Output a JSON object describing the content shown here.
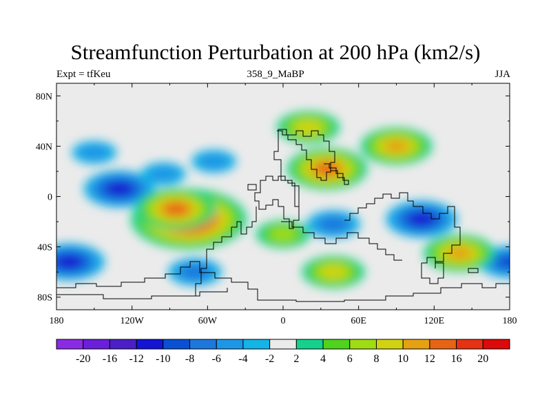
{
  "chart_data": {
    "type": "heatmap",
    "title": "Streamfunction Perturbation at 200 hPa (km2/s)",
    "left_string": "Expt = tfKeu",
    "center_string": "358_9_MaBP",
    "right_string": "JJA",
    "x_axis": {
      "range": [
        -180,
        180
      ],
      "ticks": [
        {
          "value": -180,
          "label": "180"
        },
        {
          "value": -120,
          "label": "120W"
        },
        {
          "value": -60,
          "label": "60W"
        },
        {
          "value": 0,
          "label": "0"
        },
        {
          "value": 60,
          "label": "60E"
        },
        {
          "value": 120,
          "label": "120E"
        },
        {
          "value": 180,
          "label": "180"
        }
      ]
    },
    "y_axis": {
      "range": [
        -90,
        90
      ],
      "ticks": [
        {
          "value": 80,
          "label": "80N"
        },
        {
          "value": 40,
          "label": "40N"
        },
        {
          "value": 0,
          "label": "0"
        },
        {
          "value": -40,
          "label": "40S"
        },
        {
          "value": -80,
          "label": "80S"
        }
      ]
    },
    "colorbar": {
      "levels": [
        "-20",
        "-16",
        "-12",
        "-10",
        "-8",
        "-6",
        "-4",
        "-2",
        "2",
        "4",
        "6",
        "8",
        "10",
        "12",
        "16",
        "20"
      ],
      "colors": [
        "#8a2be2",
        "#6a1fd8",
        "#4b1fc6",
        "#1414d2",
        "#0a50d2",
        "#1e78dc",
        "#1e96e6",
        "#14b4e6",
        "#ebebeb",
        "#14d28c",
        "#50d21e",
        "#a0dc14",
        "#d2d214",
        "#e6a014",
        "#e66414",
        "#e63214",
        "#dc0a0a"
      ]
    },
    "features": [
      {
        "lon": -130,
        "lat": 6,
        "value": -10
      },
      {
        "lon": -55,
        "lat": 28,
        "value": -4
      },
      {
        "lon": -95,
        "lat": 18,
        "value": -4
      },
      {
        "lon": -75,
        "lat": -18,
        "value": 20
      },
      {
        "lon": -85,
        "lat": -10,
        "value": 12
      },
      {
        "lon": 35,
        "lat": 22,
        "value": 12
      },
      {
        "lon": 20,
        "lat": 55,
        "value": 8
      },
      {
        "lon": 90,
        "lat": 40,
        "value": 10
      },
      {
        "lon": 110,
        "lat": -18,
        "value": -10
      },
      {
        "lon": 40,
        "lat": -22,
        "value": -6
      },
      {
        "lon": -170,
        "lat": -52,
        "value": -10
      },
      {
        "lon": -70,
        "lat": -60,
        "value": -6
      },
      {
        "lon": 180,
        "lat": -52,
        "value": -8
      },
      {
        "lon": 40,
        "lat": -60,
        "value": 8
      },
      {
        "lon": 140,
        "lat": -45,
        "value": 10
      },
      {
        "lon": -150,
        "lat": 35,
        "value": -4
      },
      {
        "lon": 0,
        "lat": -30,
        "value": 6
      }
    ]
  }
}
